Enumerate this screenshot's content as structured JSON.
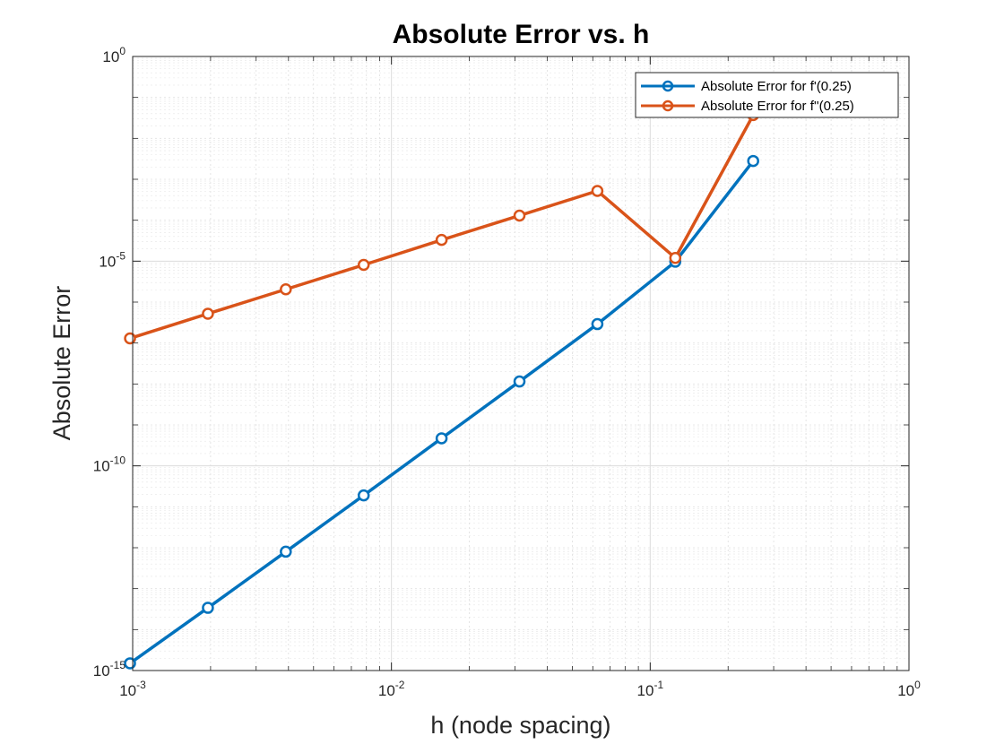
{
  "chart_data": {
    "type": "line",
    "scale": {
      "x": "log",
      "y": "log"
    },
    "title": "Absolute Error vs. h",
    "xlabel": "h (node spacing)",
    "ylabel": "Absolute Error",
    "xlim": [
      0.001,
      1
    ],
    "ylim": [
      1e-15,
      1
    ],
    "x_ticks": [
      {
        "value": 0.001,
        "base": "10",
        "exp": "-3"
      },
      {
        "value": 0.01,
        "base": "10",
        "exp": "-2"
      },
      {
        "value": 0.1,
        "base": "10",
        "exp": "-1"
      },
      {
        "value": 1,
        "base": "10",
        "exp": "0"
      }
    ],
    "y_ticks": [
      {
        "value": 1e-15,
        "base": "10",
        "exp": "-15"
      },
      {
        "value": 1e-10,
        "base": "10",
        "exp": "-10"
      },
      {
        "value": 1e-05,
        "base": "10",
        "exp": "-5"
      },
      {
        "value": 1,
        "base": "10",
        "exp": "0"
      }
    ],
    "grid": true,
    "minor_grid": true,
    "legend_position": "top-right",
    "x": [
      0.0009765625,
      0.001953125,
      0.00390625,
      0.0078125,
      0.015625,
      0.03125,
      0.0625,
      0.125,
      0.25
    ],
    "series": [
      {
        "name": "Absolute Error for f'(0.25)",
        "color": "#0072BD",
        "values": [
          1.5e-15,
          3.4e-14,
          8e-13,
          1.9e-11,
          4.7e-10,
          1.15e-08,
          2.9e-07,
          9.7e-06,
          0.0028
        ]
      },
      {
        "name": "Absolute Error for f''(0.25)",
        "color": "#D95319",
        "values": [
          1.3e-07,
          5.2e-07,
          2.05e-06,
          8.1e-06,
          3.3e-05,
          0.00013,
          0.00052,
          1.2e-05,
          0.037
        ]
      }
    ]
  }
}
